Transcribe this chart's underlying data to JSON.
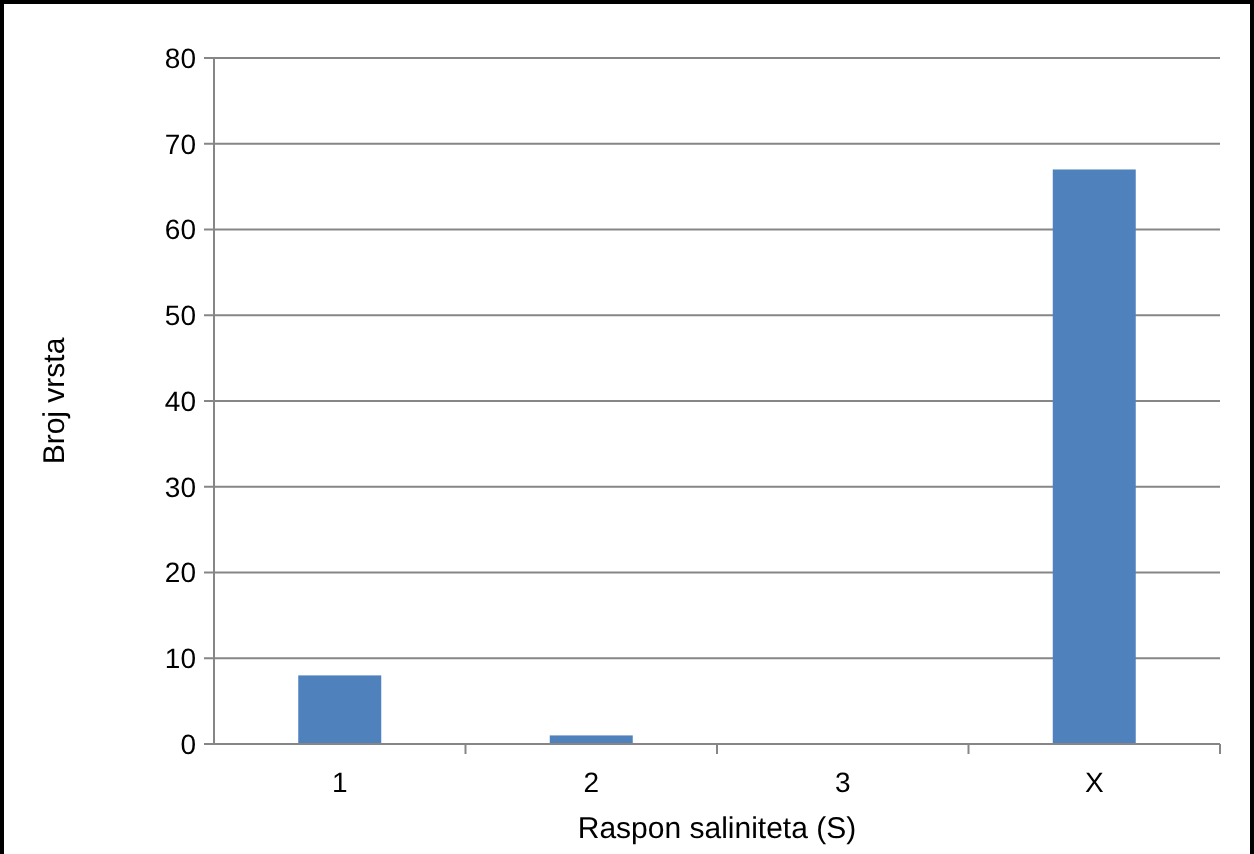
{
  "chart_data": {
    "type": "bar",
    "xlabel": "Raspon saliniteta (S)",
    "ylabel": "Broj vrsta",
    "categories": [
      "1",
      "2",
      "3",
      "X"
    ],
    "values": [
      8,
      1,
      0,
      67
    ],
    "color": "#4f81bd",
    "ylim": [
      0,
      80
    ],
    "yticks": [
      0,
      10,
      20,
      30,
      40,
      50,
      60,
      70,
      80
    ],
    "grid": "y"
  }
}
